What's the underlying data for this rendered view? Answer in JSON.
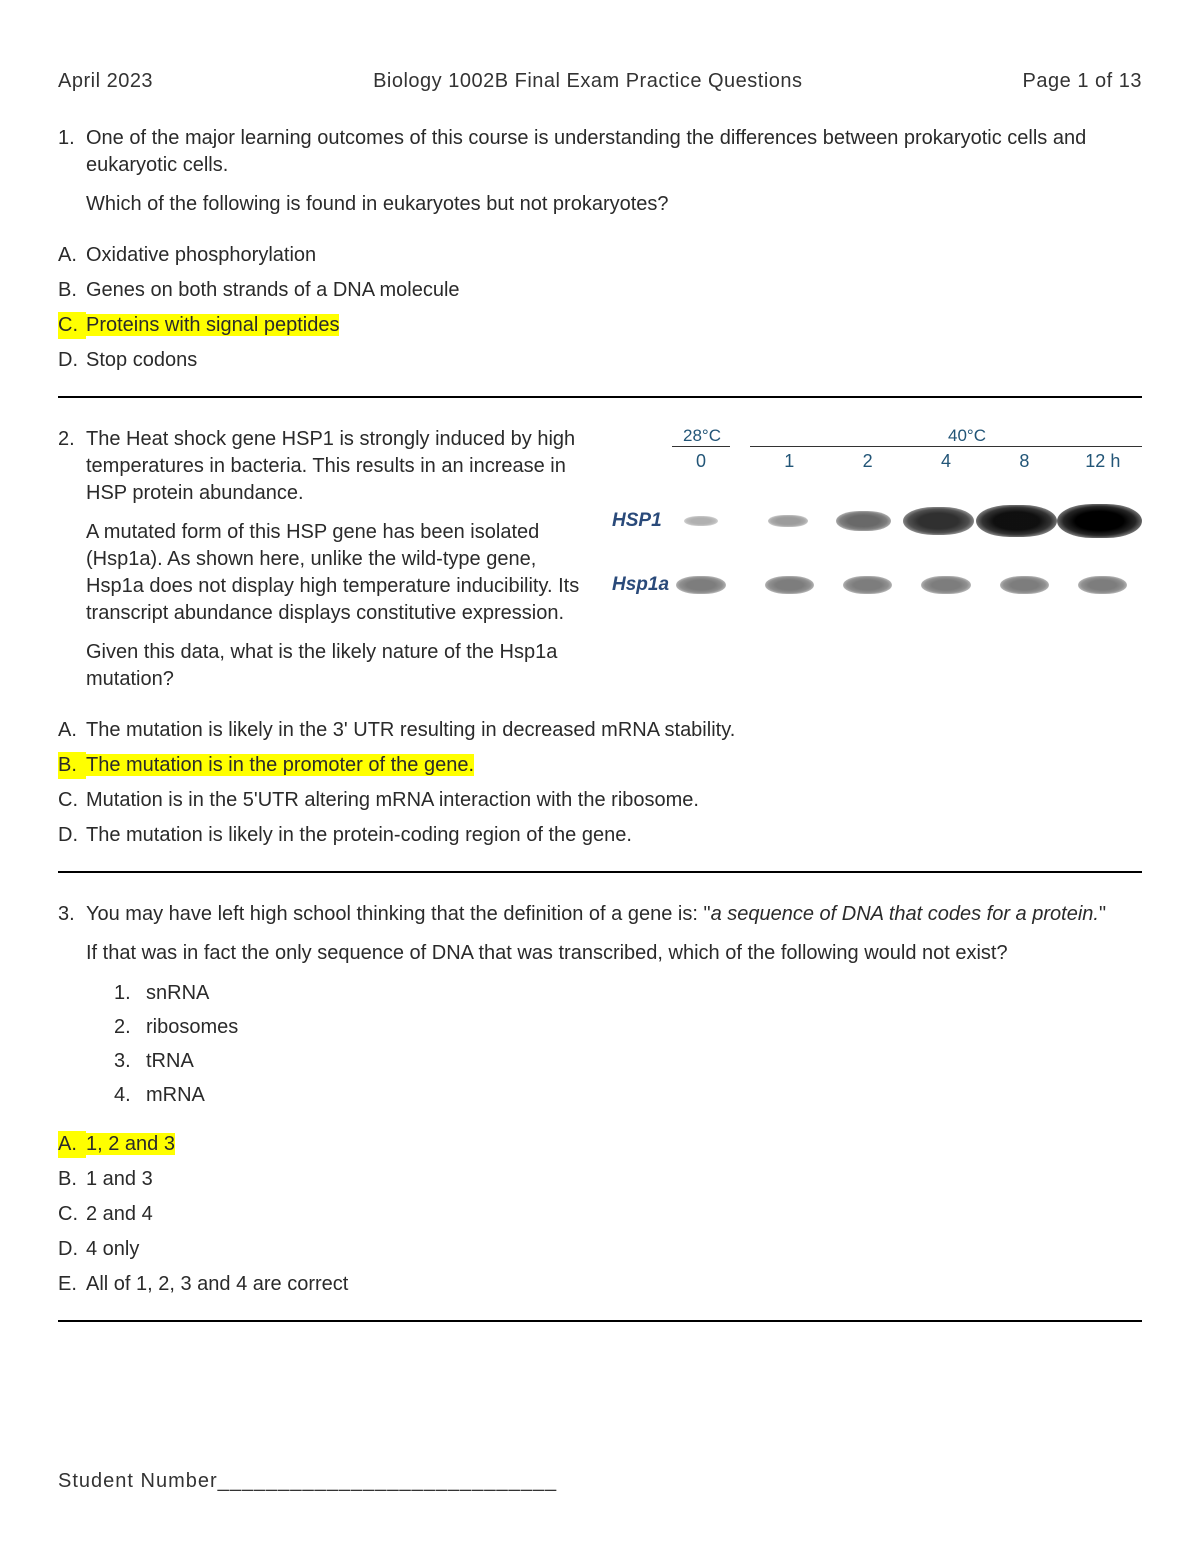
{
  "header": {
    "left": "April 2023",
    "center": "Biology 1002B Final Exam Practice Questions",
    "right": "Page 1 of 13"
  },
  "q1": {
    "num": "1.",
    "p1": "One of the major learning outcomes of this course is understanding the differences between prokaryotic cells and eukaryotic cells.",
    "p2": "Which of the following is found in eukaryotes but not prokaryotes?",
    "choices": [
      {
        "l": "A.",
        "t": "Oxidative phosphorylation",
        "hl": false
      },
      {
        "l": "B.",
        "t": "Genes on both strands of a DNA molecule",
        "hl": false
      },
      {
        "l": "C.",
        "t": "Proteins with signal peptides",
        "hl": true
      },
      {
        "l": "D.",
        "t": "Stop codons",
        "hl": false
      }
    ]
  },
  "q2": {
    "num": "2.",
    "p1": "The Heat shock gene HSP1 is strongly induced by high temperatures in bacteria. This results in an increase in HSP protein abundance.",
    "p2": "A mutated form of this HSP gene has been isolated (Hsp1a). As shown here, unlike the wild-type gene, Hsp1a does not display high temperature inducibility. Its transcript abundance displays constitutive expression.",
    "p3": "Given this data, what is the likely nature of the Hsp1a mutation?",
    "choices": [
      {
        "l": "A.",
        "t": "The mutation is likely in the 3' UTR resulting in decreased mRNA stability.",
        "hl": false
      },
      {
        "l": "B.",
        "t": "The mutation is in the promoter of the gene.",
        "hl": true
      },
      {
        "l": "C.",
        "t": "Mutation is in the 5'UTR altering mRNA interaction with the ribosome.",
        "hl": false
      },
      {
        "l": "D.",
        "t": "The mutation is likely in the protein-coding region of the gene.",
        "hl": false
      }
    ],
    "figure": {
      "temp28": "28°C",
      "temp40": "40°C",
      "times": [
        "0",
        "1",
        "2",
        "4",
        "8",
        "12 h"
      ],
      "rows": [
        {
          "label": "HSP1",
          "intensity": [
            0.08,
            0.18,
            0.45,
            0.75,
            0.92,
            1.0
          ]
        },
        {
          "label": "Hsp1a",
          "intensity": [
            0.35,
            0.35,
            0.35,
            0.35,
            0.35,
            0.35
          ]
        }
      ],
      "band_color": "#000000",
      "label_color": "#2a4a7a"
    }
  },
  "q3": {
    "num": "3.",
    "p1a": "You may have left high school thinking that the definition of a gene is: \"",
    "p1b": "a sequence of DNA that codes for a protein.",
    "p1c": "\"",
    "p2": "If that was in fact the only sequence of DNA that was transcribed, which of the following would not exist?",
    "sub": [
      {
        "n": "1.",
        "t": "snRNA"
      },
      {
        "n": "2.",
        "t": "ribosomes"
      },
      {
        "n": "3.",
        "t": "tRNA"
      },
      {
        "n": "4.",
        "t": "mRNA"
      }
    ],
    "choices": [
      {
        "l": "A.",
        "t": "1, 2 and 3",
        "hl": true
      },
      {
        "l": "B.",
        "t": "1 and 3",
        "hl": false
      },
      {
        "l": "C.",
        "t": "2 and 4",
        "hl": false
      },
      {
        "l": "D.",
        "t": "4 only",
        "hl": false
      },
      {
        "l": "E.",
        "t": "All of 1, 2, 3 and 4 are correct",
        "hl": false
      }
    ]
  },
  "footer": {
    "label": "Student Number",
    "line": "____________________________"
  }
}
